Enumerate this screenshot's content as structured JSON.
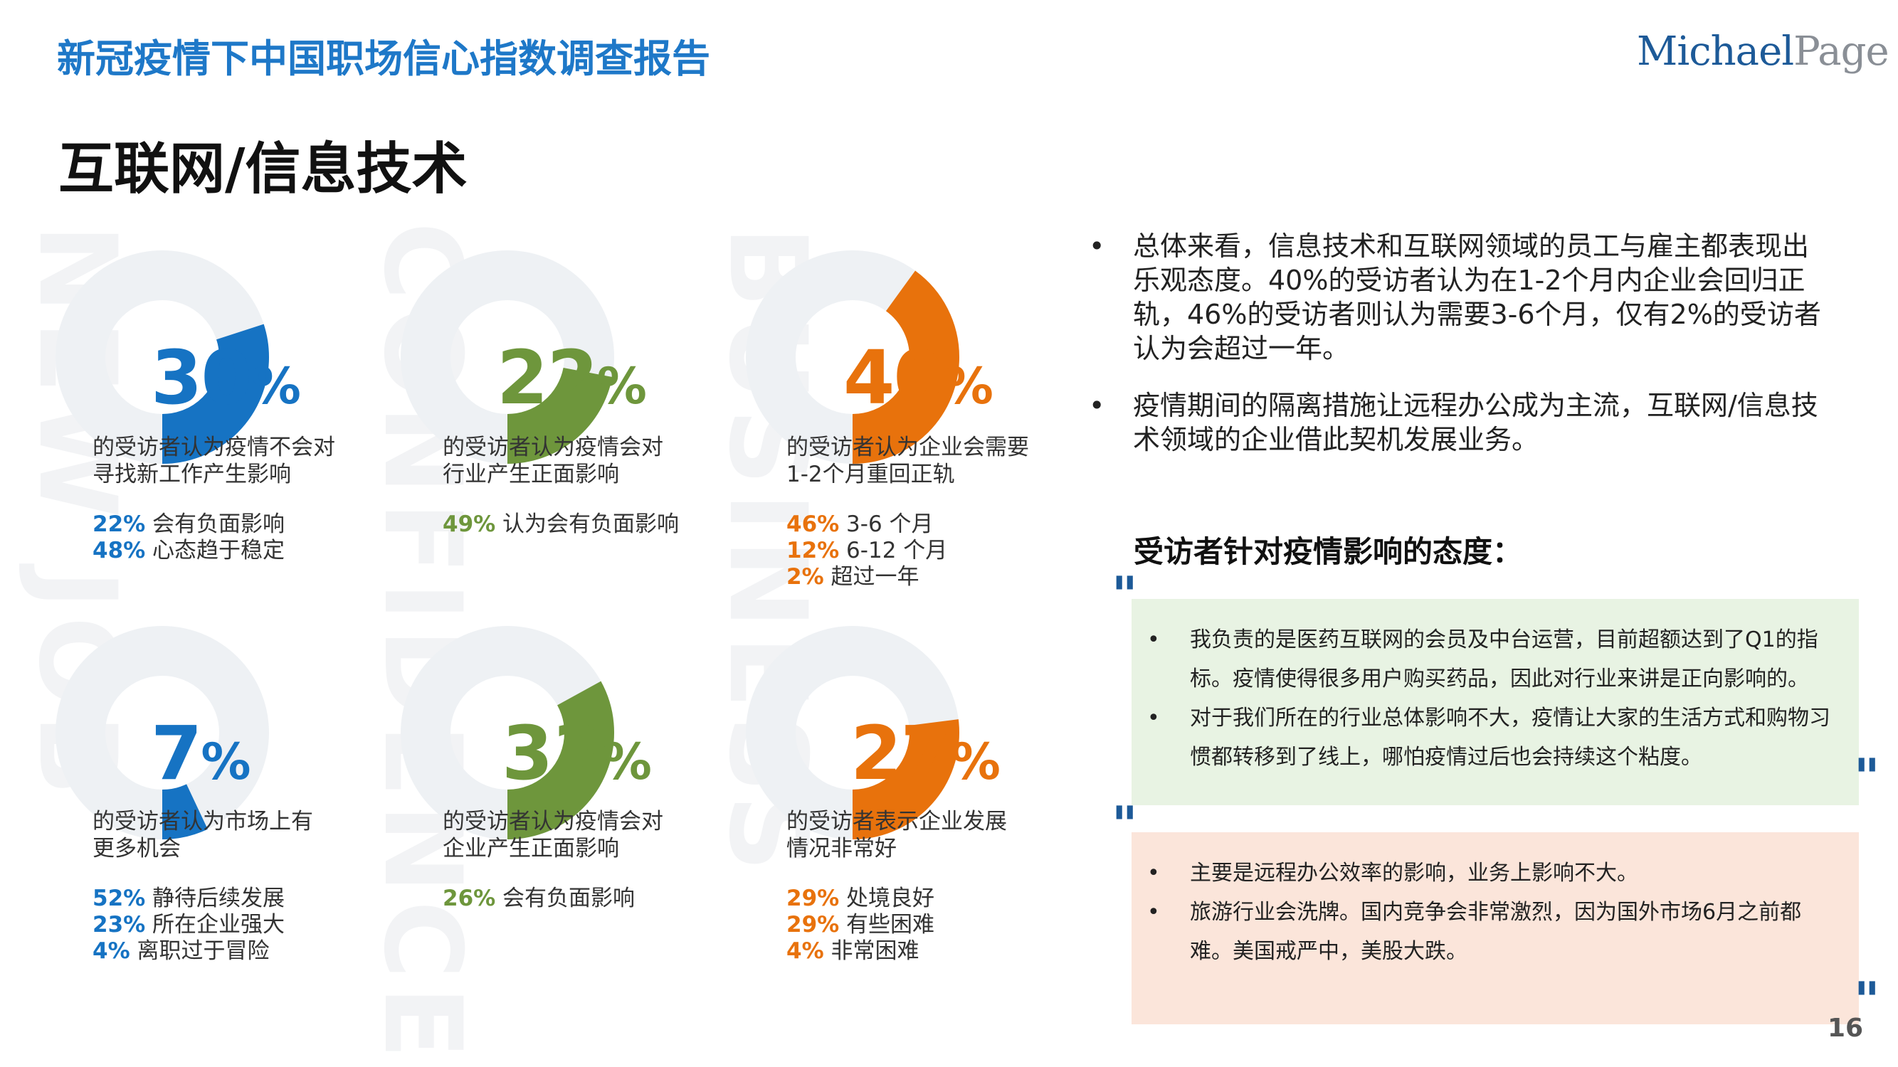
{
  "header": {
    "report_title": "新冠疫情下中国职场信心指数调查报告",
    "logo_michael": "Michael",
    "logo_page": "Page"
  },
  "section_title": "互联网/信息技术",
  "watermarks": [
    "NEW JOB",
    "CONFIDENCE",
    "BUSINESS"
  ],
  "colors": {
    "blue": "#1673c3",
    "green": "#6e963c",
    "orange": "#e8720c",
    "track": "#eef1f4",
    "accent_title": "#1e78c8"
  },
  "cards": [
    {
      "percent": 30,
      "pct_num": "30",
      "pct_sign": "%",
      "color": "blue",
      "desc": [
        "的受访者认为疫情不会对",
        "寻找新工作产生影响"
      ],
      "stats": [
        {
          "v": "22%",
          "t": " 会有负面影响"
        },
        {
          "v": "48%",
          "t": " 心态趋于稳定"
        }
      ]
    },
    {
      "percent": 22,
      "pct_num": "22",
      "pct_sign": "%",
      "color": "green",
      "desc": [
        "的受访者认为疫情会对",
        "行业产生正面影响"
      ],
      "stats": [
        {
          "v": "49%",
          "t": " 认为会有负面影响"
        }
      ]
    },
    {
      "percent": 40,
      "pct_num": "40",
      "pct_sign": "%",
      "color": "orange",
      "desc": [
        "的受访者认为企业会需要",
        "1-2个月重回正轨"
      ],
      "stats": [
        {
          "v": "46%",
          "t": " 3-6 个月"
        },
        {
          "v": "12%",
          "t": " 6-12 个月"
        },
        {
          "v": "2%",
          "t": " 超过一年"
        }
      ]
    },
    {
      "percent": 7,
      "pct_num": "7",
      "pct_sign": "%",
      "color": "blue",
      "desc": [
        "的受访者认为市场上有",
        "更多机会"
      ],
      "stats": [
        {
          "v": "52%",
          "t": " 静待后续发展"
        },
        {
          "v": "23%",
          "t": " 所在企业强大"
        },
        {
          "v": "4%",
          "t": " 离职过于冒险"
        }
      ]
    },
    {
      "percent": 33,
      "pct_num": "33",
      "pct_sign": "%",
      "color": "green",
      "desc": [
        "的受访者认为疫情会对",
        "企业产生正面影响"
      ],
      "stats": [
        {
          "v": "26%",
          "t": " 会有负面影响"
        }
      ]
    },
    {
      "percent": 27,
      "pct_num": "27",
      "pct_sign": "%",
      "color": "orange",
      "desc": [
        "的受访者表示企业发展",
        "情况非常好"
      ],
      "stats": [
        {
          "v": "29%",
          "t": " 处境良好"
        },
        {
          "v": "29%",
          "t": " 有些困难"
        },
        {
          "v": "4%",
          "t": " 非常困难"
        }
      ]
    }
  ],
  "bullets": [
    {
      "mark": "•",
      "lines": [
        "总体来看，信息技术和互联网领域的员工与雇主都表现出",
        "乐观态度。40%的受访者认为在1-2个月内企业会回归正",
        "轨，46%的受访者则认为需要3-6个月，仅有2%的受访者",
        "认为会超过一年。"
      ]
    },
    {
      "mark": "•",
      "lines": [
        "疫情期间的隔离措施让远程办公成为主流，互联网/信息技",
        "术领域的企业借此契机发展业务。"
      ]
    }
  ],
  "attitude_title": "受访者针对疫情影响的态度：",
  "quote_mark": "\"",
  "quotes": [
    {
      "bg": "#e8f3e3",
      "items": [
        {
          "mark": "•",
          "lines": [
            "我负责的是医药互联网的会员及中台运营，目前超额达到了Q1的指",
            "标。疫情使得很多用户购买药品，因此对行业来讲是正向影响的。"
          ]
        },
        {
          "mark": "•",
          "lines": [
            "对于我们所在的行业总体影响不大，疫情让大家的生活方式和购物习",
            "惯都转移到了线上，哪怕疫情过后也会持续这个粘度。"
          ]
        }
      ]
    },
    {
      "bg": "#fbe5da",
      "items": [
        {
          "mark": "•",
          "lines": [
            "主要是远程办公效率的影响，业务上影响不大。"
          ]
        },
        {
          "mark": "•",
          "lines": [
            "旅游行业会洗牌。国内竞争会非常激烈，因为国外市场6月之前都",
            "难。美国戒严中，美股大跌。"
          ]
        }
      ]
    }
  ],
  "page_number": "16"
}
